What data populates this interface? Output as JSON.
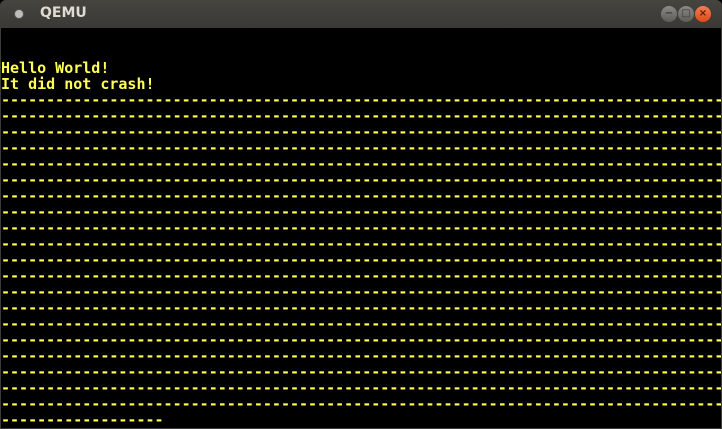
{
  "window": {
    "title": "QEMU",
    "buttons": {
      "minimize": "−",
      "maximize": "□",
      "close": "×"
    },
    "colors": {
      "text": "#ffff55",
      "background": "#000000",
      "close": "#e95420"
    }
  },
  "screen": {
    "lines": [
      "",
      "",
      "Hello World!",
      "It did not crash!",
      "--------------------------------------------------------------------------------",
      "--------------------------------------------------------------------------------",
      "--------------------------------------------------------------------------------",
      "--------------------------------------------------------------------------------",
      "--------------------------------------------------------------------------------",
      "--------------------------------------------------------------------------------",
      "--------------------------------------------------------------------------------",
      "--------------------------------------------------------------------------------",
      "--------------------------------------------------------------------------------",
      "--------------------------------------------------------------------------------",
      "--------------------------------------------------------------------------------",
      "--------------------------------------------------------------------------------",
      "--------------------------------------------------------------------------------",
      "--------------------------------------------------------------------------------",
      "--------------------------------------------------------------------------------",
      "--------------------------------------------------------------------------------",
      "--------------------------------------------------------------------------------",
      "--------------------------------------------------------------------------------",
      "--------------------------------------------------------------------------------",
      "--------------------------------------------------------------------------------",
      "------------------"
    ]
  }
}
